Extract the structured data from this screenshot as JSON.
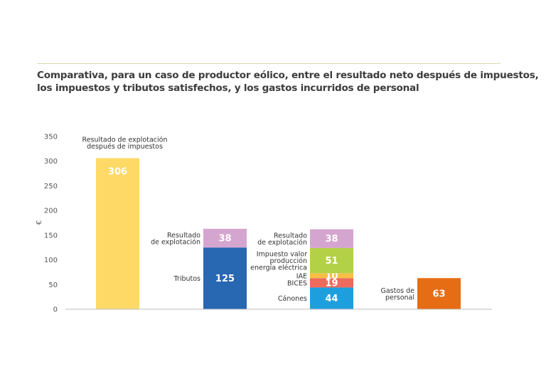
{
  "title": {
    "line1": "Comparativa, para un caso de productor eólico, entre el resultado neto después de impuestos,",
    "line2": "los impuestos y tributos satisfechos, y los gastos incurridos de personal"
  },
  "chart_data": {
    "type": "bar",
    "stacked": true,
    "ylabel": "€",
    "ylim": [
      0,
      350
    ],
    "yticks": [
      0,
      50,
      100,
      150,
      200,
      250,
      300,
      350
    ],
    "grid": false,
    "bars": [
      {
        "segments": [
          {
            "name": "Resultado de explotación después de impuestos",
            "label_lines": [
              "Resultado de explotación",
              "después de impuestos"
            ],
            "value": 306,
            "value_label": "306",
            "color": "#ffd966",
            "label_pos": "top"
          }
        ]
      },
      {
        "segments": [
          {
            "name": "Tributos",
            "label_lines": [
              "Tributos"
            ],
            "value": 125,
            "value_label": "125",
            "color": "#2867b2",
            "label_pos": "left"
          },
          {
            "name": "Resultado de explotación",
            "label_lines": [
              "Resultado",
              "de explotación"
            ],
            "value": 38,
            "value_label": "38",
            "color": "#d4a5cf",
            "label_pos": "left"
          }
        ]
      },
      {
        "segments": [
          {
            "name": "Cánones",
            "label_lines": [
              "Cánones"
            ],
            "value": 44,
            "value_label": "44",
            "color": "#1e9fdd",
            "label_pos": "left"
          },
          {
            "name": "BICES",
            "label_lines": [
              "BICES"
            ],
            "value": 19,
            "value_label": "19",
            "color": "#ee6a5c",
            "label_pos": "left"
          },
          {
            "name": "IAE",
            "label_lines": [
              "IAE"
            ],
            "value": 10,
            "value_label": "10",
            "color": "#f6bf45",
            "label_pos": "left"
          },
          {
            "name": "Impuesto valor producción energía eléctrica",
            "label_lines": [
              "Impuesto valor",
              "producción",
              "energía eléctrica"
            ],
            "value": 51,
            "value_label": "51",
            "color": "#b3d147",
            "label_pos": "left"
          },
          {
            "name": "Resultado de explotación",
            "label_lines": [
              "Resultado",
              "de explotación"
            ],
            "value": 38,
            "value_label": "38",
            "color": "#d4a5cf",
            "label_pos": "left"
          }
        ]
      },
      {
        "segments": [
          {
            "name": "Gastos de personal",
            "label_lines": [
              "Gastos de",
              "personal"
            ],
            "value": 63,
            "value_label": "63",
            "color": "#e76d14",
            "label_pos": "left"
          }
        ]
      }
    ]
  }
}
